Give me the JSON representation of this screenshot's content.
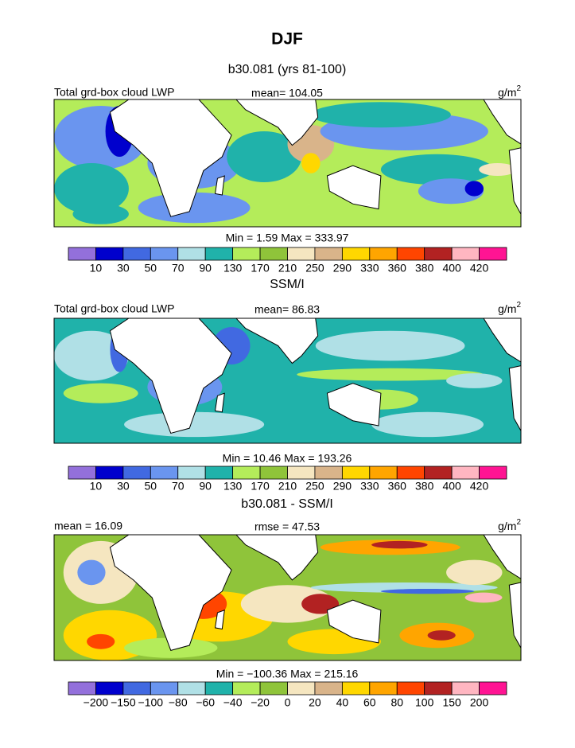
{
  "title": "DJF",
  "panels": [
    {
      "title": "b30.081 (yrs 81-100)",
      "left_label": "Total grd-box cloud LWP",
      "center_label": "mean=  104.05",
      "units": "g/m",
      "units_sup": "2",
      "stats": "Min =    1.59 Max = 333.97",
      "levels": [
        10,
        30,
        50,
        70,
        90,
        130,
        170,
        210,
        250,
        290,
        330,
        360,
        380,
        400,
        420
      ],
      "colors": [
        "#9370db",
        "#0000cd",
        "#4169e1",
        "#6a95ef",
        "#b0e0e6",
        "#20b2aa",
        "#b4ec5a",
        "#8fc43a",
        "#f5e6c0",
        "#d9b48a",
        "#ffd700",
        "#ffa500",
        "#ff4500",
        "#b22222",
        "#ffb6c1",
        "#ff1493"
      ]
    },
    {
      "title": "SSM/I",
      "left_label": "Total grd-box cloud LWP",
      "center_label": "mean=  86.83",
      "units": "g/m",
      "units_sup": "2",
      "stats": "Min =  10.46 Max = 193.26",
      "levels": [
        10,
        30,
        50,
        70,
        90,
        130,
        170,
        210,
        250,
        290,
        330,
        360,
        380,
        400,
        420
      ],
      "colors": [
        "#9370db",
        "#0000cd",
        "#4169e1",
        "#6a95ef",
        "#b0e0e6",
        "#20b2aa",
        "#b4ec5a",
        "#8fc43a",
        "#f5e6c0",
        "#d9b48a",
        "#ffd700",
        "#ffa500",
        "#ff4500",
        "#b22222",
        "#ffb6c1",
        "#ff1493"
      ]
    },
    {
      "title": "b30.081 - SSM/I",
      "left_label": "mean =  16.09",
      "center_label": "rmse =  47.53",
      "units": "g/m",
      "units_sup": "2",
      "stats": "Min = −100.36 Max = 215.16",
      "levels": [
        {
          "value": -200,
          "label": "−200"
        },
        {
          "value": -150,
          "label": "−150"
        },
        {
          "value": -100,
          "label": "−100"
        },
        {
          "value": -80,
          "label": "−80"
        },
        {
          "value": -60,
          "label": "−60"
        },
        {
          "value": -40,
          "label": "−40"
        },
        {
          "value": -20,
          "label": "−20"
        },
        0,
        20,
        40,
        60,
        80,
        100,
        150,
        200
      ],
      "colors": [
        "#9370db",
        "#0000cd",
        "#4169e1",
        "#6a95ef",
        "#b0e0e6",
        "#20b2aa",
        "#b4ec5a",
        "#8fc43a",
        "#f5e6c0",
        "#d9b48a",
        "#ffd700",
        "#ffa500",
        "#ff4500",
        "#b22222",
        "#ffb6c1",
        "#ff1493"
      ]
    }
  ]
}
